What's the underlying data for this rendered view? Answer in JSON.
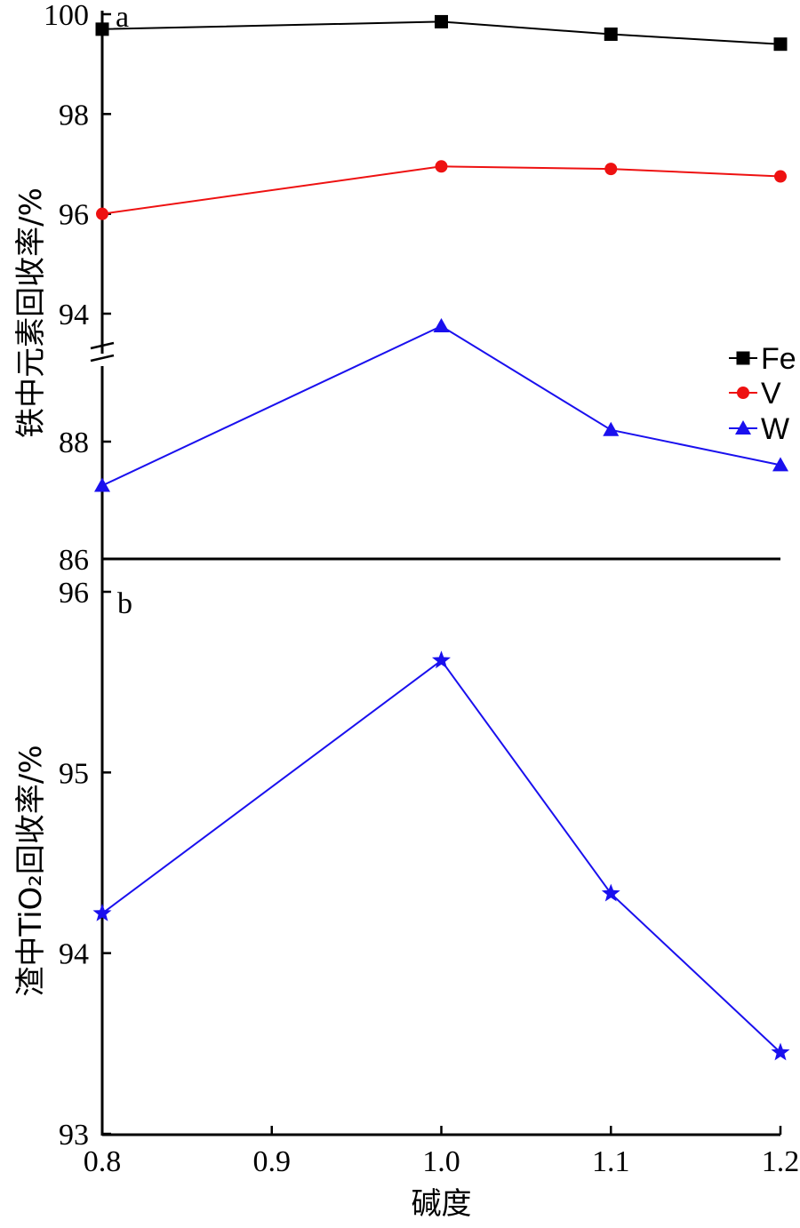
{
  "chart_data": [
    {
      "panel_label": "a",
      "type": "line",
      "ylabel": "铁中元素回收率/%",
      "x": [
        0.8,
        1.0,
        1.1,
        1.2
      ],
      "xlim": [
        0.8,
        1.2
      ],
      "broken_axis": true,
      "ylim_upper": [
        93.6,
        100
      ],
      "ylim_lower": [
        86,
        89.3
      ],
      "yticks_upper": [
        "94",
        "96",
        "98",
        "100"
      ],
      "yticks_lower": [
        "86",
        "88"
      ],
      "legend_position": "right",
      "series": [
        {
          "name": "Fe",
          "marker": "square",
          "color": "#000000",
          "values": [
            99.7,
            99.85,
            99.6,
            99.4
          ]
        },
        {
          "name": "V",
          "marker": "circle",
          "color": "#ee1111",
          "values": [
            96.0,
            96.95,
            96.9,
            96.75
          ]
        },
        {
          "name": "W",
          "marker": "triangle",
          "color": "#1a10ee",
          "values": [
            87.25,
            93.75,
            88.2,
            87.6
          ]
        }
      ]
    },
    {
      "panel_label": "b",
      "type": "line",
      "ylabel": "渣中TiO₂回收率/%",
      "xlabel": "碱度",
      "x": [
        0.8,
        1.0,
        1.1,
        1.2
      ],
      "xticks": [
        "0.8",
        "0.9",
        "1.0",
        "1.1",
        "1.2"
      ],
      "xlim": [
        0.8,
        1.2
      ],
      "ylim": [
        93,
        96
      ],
      "yticks": [
        "93",
        "94",
        "95",
        "96"
      ],
      "series": [
        {
          "name": "",
          "marker": "star",
          "color": "#1a10ee",
          "values": [
            94.22,
            95.62,
            94.33,
            93.45
          ]
        }
      ]
    }
  ]
}
